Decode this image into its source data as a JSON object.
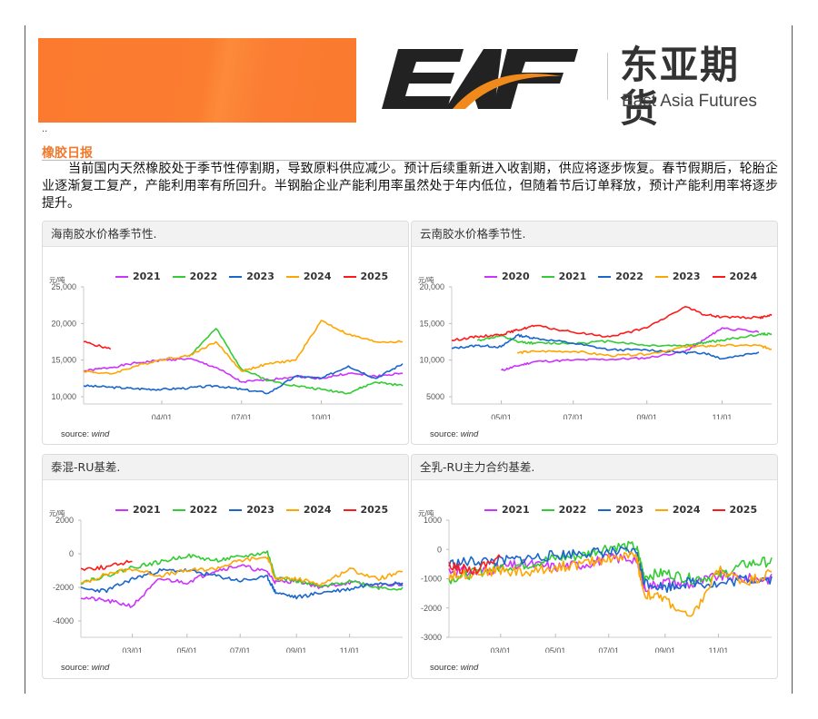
{
  "header": {
    "brand_logo_text": "EAF",
    "brand_cn": "东亚期货",
    "brand_en": "East Asia Futures",
    "dots": ".."
  },
  "report": {
    "title": "橡胶日报",
    "summary": "当前国内天然橡胶处于季节性停割期，导致原料供应减少。预计后续重新进入收割期，供应将逐步恢复。春节假期后，轮胎企业逐渐复工复产，产能利用率有所回升。半钢胎企业产能利用率虽然处于年内低位，但随着节后订单释放，预计产能利用率将逐步提升。"
  },
  "colors": {
    "accent": "#ef7a2c",
    "s2020": "#cc33ff",
    "s2021": "#cc33ff",
    "s2022": "#33cc33",
    "s2023": "#1a66cc",
    "s2024": "#ffa500",
    "s2025": "#ff1a1a"
  },
  "panels": [
    {
      "title": "海南胶水价格季节性.",
      "unit": "元/吨",
      "source_label": "source:",
      "source_value": "wind"
    },
    {
      "title": "云南胶水价格季节性.",
      "unit": "元/吨",
      "source_label": "source:",
      "source_value": "wind"
    },
    {
      "title": "泰混-RU基差.",
      "unit": "元/吨",
      "source_label": "source:",
      "source_value": "wind"
    },
    {
      "title": "全乳-RU主力合约基差.",
      "unit": "元/吨",
      "source_label": "source:",
      "source_value": "wind"
    }
  ],
  "chart_data": [
    {
      "type": "line",
      "title": "海南胶水价格季节性.",
      "ylabel": "元/吨",
      "ylim": [
        10000,
        25000
      ],
      "yticks": [
        "25,000",
        "20,000",
        "15,000",
        "10,000"
      ],
      "xticks": [
        "04/01",
        "07/01",
        "10/01"
      ],
      "legend_position": "top",
      "x": [
        "01/01",
        "02/01",
        "03/01",
        "04/01",
        "05/01",
        "06/01",
        "07/01",
        "08/01",
        "09/01",
        "10/01",
        "11/01",
        "12/01",
        "12/31"
      ],
      "series": [
        {
          "name": "2021",
          "color": "#cc33ff",
          "values": [
            13500,
            14000,
            14600,
            15000,
            15200,
            14000,
            12000,
            12300,
            12800,
            12500,
            13200,
            12800,
            13200
          ]
        },
        {
          "name": "2022",
          "color": "#33cc33",
          "values": [
            null,
            null,
            null,
            null,
            15500,
            19300,
            13800,
            12200,
            11500,
            11000,
            10500,
            12000,
            11500
          ]
        },
        {
          "name": "2023",
          "color": "#1a66cc",
          "values": [
            11500,
            11300,
            11100,
            11000,
            11200,
            11500,
            11000,
            10500,
            12800,
            12500,
            14200,
            12500,
            14500
          ]
        },
        {
          "name": "2024",
          "color": "#ffa500",
          "values": [
            13500,
            13100,
            14200,
            15100,
            15600,
            17500,
            13500,
            14500,
            15000,
            20400,
            18500,
            17500,
            17500
          ]
        },
        {
          "name": "2025",
          "color": "#ff1a1a",
          "values": [
            17500,
            16500,
            null,
            null,
            null,
            null,
            null,
            null,
            null,
            null,
            null,
            null,
            null
          ]
        }
      ]
    },
    {
      "type": "line",
      "title": "云南胶水价格季节性.",
      "ylabel": "元/吨",
      "ylim": [
        5000,
        20000
      ],
      "yticks": [
        "20,000",
        "15,000",
        "10,000",
        "5000"
      ],
      "xticks": [
        "05/01",
        "07/01",
        "09/01",
        "11/01"
      ],
      "legend_position": "top",
      "x": [
        "03/20",
        "04/15",
        "05/15",
        "06/01",
        "06/15",
        "07/01",
        "08/01",
        "09/01",
        "10/01",
        "10/15",
        "11/01",
        "12/01",
        "12/15"
      ],
      "series": [
        {
          "name": "2020",
          "color": "#cc33ff",
          "values": [
            null,
            null,
            8600,
            9200,
            9800,
            10000,
            10100,
            10300,
            11200,
            12800,
            14400,
            13800,
            null
          ]
        },
        {
          "name": "2021",
          "color": "#33cc33",
          "values": [
            null,
            12700,
            13300,
            12500,
            12300,
            12300,
            12600,
            12000,
            12000,
            12400,
            12700,
            13500,
            13600
          ]
        },
        {
          "name": "2022",
          "color": "#1a66cc",
          "values": [
            11600,
            12000,
            11800,
            13400,
            13000,
            12300,
            11400,
            11400,
            11000,
            11000,
            10200,
            11100,
            null
          ]
        },
        {
          "name": "2023",
          "color": "#ffa500",
          "values": [
            null,
            null,
            null,
            11000,
            11200,
            11200,
            10600,
            10800,
            11800,
            11900,
            12000,
            12000,
            11500
          ]
        },
        {
          "name": "2024",
          "color": "#ff1a1a",
          "values": [
            12700,
            13200,
            13500,
            14100,
            14700,
            13800,
            13200,
            14400,
            17300,
            16200,
            15900,
            15800,
            16100
          ]
        }
      ]
    },
    {
      "type": "line",
      "title": "泰混-RU基差.",
      "ylabel": "元/吨",
      "ylim": [
        -4000,
        2000
      ],
      "yticks": [
        "2000",
        "0",
        "-2000",
        "-4000"
      ],
      "xticks": [
        "03/01",
        "05/01",
        "07/01",
        "09/01",
        "11/01"
      ],
      "legend_position": "top",
      "x": [
        "01/01",
        "02/01",
        "03/01",
        "04/01",
        "05/01",
        "06/01",
        "07/01",
        "08/01",
        "08/10",
        "09/01",
        "10/01",
        "11/01",
        "12/01",
        "12/31"
      ],
      "series": [
        {
          "name": "2021",
          "color": "#cc33ff",
          "values": [
            -2600,
            -2800,
            -3100,
            -1500,
            -1700,
            -1000,
            -700,
            -1100,
            -1700,
            -1600,
            -2000,
            -1700,
            -1900,
            -1800
          ]
        },
        {
          "name": "2022",
          "color": "#33cc33",
          "values": [
            -1700,
            -1300,
            -800,
            -500,
            -100,
            -400,
            -200,
            100,
            -1400,
            -1600,
            -2000,
            -1600,
            -2000,
            -2100
          ]
        },
        {
          "name": "2023",
          "color": "#1a66cc",
          "values": [
            -2100,
            -2200,
            -1500,
            -1000,
            -1000,
            -1300,
            -1600,
            -1400,
            -2300,
            -2600,
            -2300,
            -2100,
            -1700,
            -1800
          ]
        },
        {
          "name": "2024",
          "color": "#ffa500",
          "values": [
            -1800,
            -1200,
            -900,
            -1300,
            -1000,
            -900,
            -400,
            -200,
            -1500,
            -1500,
            -1800,
            -900,
            -1500,
            -1100
          ]
        },
        {
          "name": "2025",
          "color": "#ff1a1a",
          "values": [
            -900,
            -800,
            -400,
            null,
            null,
            null,
            null,
            null,
            null,
            null,
            null,
            null,
            null,
            null
          ]
        }
      ]
    },
    {
      "type": "line",
      "title": "全乳-RU主力合约基差.",
      "ylabel": "元/吨",
      "ylim": [
        -3000,
        1000
      ],
      "yticks": [
        "1000",
        "0",
        "-1000",
        "-2000",
        "-3000"
      ],
      "xticks": [
        "03/01",
        "05/01",
        "07/01",
        "09/01",
        "11/01"
      ],
      "legend_position": "top",
      "x": [
        "01/01",
        "02/01",
        "03/01",
        "04/01",
        "05/01",
        "06/01",
        "07/01",
        "08/01",
        "08/10",
        "09/01",
        "10/01",
        "11/01",
        "12/01",
        "12/31"
      ],
      "series": [
        {
          "name": "2021",
          "color": "#cc33ff",
          "values": [
            -700,
            -800,
            -600,
            -500,
            -600,
            -500,
            -300,
            -300,
            -1300,
            -1100,
            -1200,
            -900,
            -1000,
            -1000
          ]
        },
        {
          "name": "2022",
          "color": "#33cc33",
          "values": [
            -1000,
            -800,
            -600,
            -500,
            -300,
            -200,
            100,
            100,
            -900,
            -800,
            -1000,
            -900,
            -500,
            -400
          ]
        },
        {
          "name": "2023",
          "color": "#1a66cc",
          "values": [
            -500,
            -400,
            -400,
            -300,
            -200,
            -100,
            -100,
            -100,
            -1100,
            -1300,
            -1100,
            -1200,
            -1000,
            -1000
          ]
        },
        {
          "name": "2024",
          "color": "#ffa500",
          "values": [
            -900,
            -800,
            -700,
            -800,
            -600,
            -500,
            -300,
            -200,
            -1500,
            -1700,
            -2400,
            -700,
            -1100,
            -800
          ]
        },
        {
          "name": "2025",
          "color": "#ff1a1a",
          "values": [
            -600,
            -700,
            -200,
            null,
            null,
            null,
            null,
            null,
            null,
            null,
            null,
            null,
            null,
            null
          ]
        }
      ]
    }
  ]
}
